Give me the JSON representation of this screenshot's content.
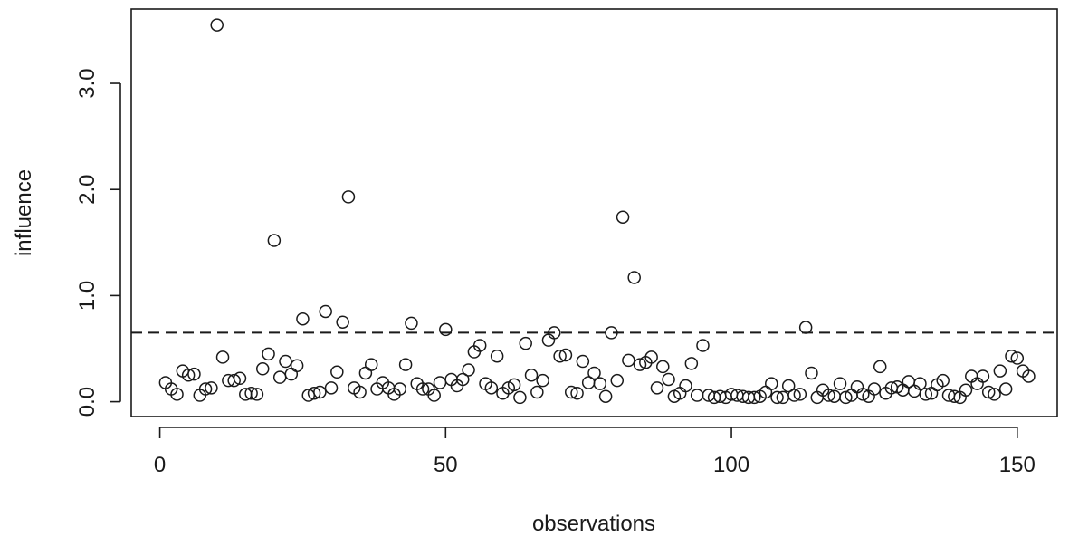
{
  "chart_data": {
    "type": "scatter",
    "xlabel": "observations",
    "ylabel": "influence",
    "xlim": [
      -5,
      157
    ],
    "ylim": [
      -0.14,
      3.7
    ],
    "x_ticks": [
      0,
      50,
      100,
      150
    ],
    "x_tick_labels": [
      "0",
      "50",
      "100",
      "150"
    ],
    "y_ticks": [
      0,
      1,
      2,
      3
    ],
    "y_tick_labels": [
      "0.0",
      "1.0",
      "2.0",
      "3.0"
    ],
    "threshold": 0.65,
    "grid": false,
    "x": [
      1,
      2,
      3,
      4,
      5,
      6,
      7,
      8,
      9,
      10,
      11,
      12,
      13,
      14,
      15,
      16,
      17,
      18,
      19,
      20,
      21,
      22,
      23,
      24,
      25,
      26,
      27,
      28,
      29,
      30,
      31,
      32,
      33,
      34,
      35,
      36,
      37,
      38,
      39,
      40,
      41,
      42,
      43,
      44,
      45,
      46,
      47,
      48,
      49,
      50,
      51,
      52,
      53,
      54,
      55,
      56,
      57,
      58,
      59,
      60,
      61,
      62,
      63,
      64,
      65,
      66,
      67,
      68,
      69,
      70,
      71,
      72,
      73,
      74,
      75,
      76,
      77,
      78,
      79,
      80,
      81,
      82,
      83,
      84,
      85,
      86,
      87,
      88,
      89,
      90,
      91,
      92,
      93,
      94,
      95,
      96,
      97,
      98,
      99,
      100,
      101,
      102,
      103,
      104,
      105,
      106,
      107,
      108,
      109,
      110,
      111,
      112,
      113,
      114,
      115,
      116,
      117,
      118,
      119,
      120,
      121,
      122,
      123,
      124,
      125,
      126,
      127,
      128,
      129,
      130,
      131,
      132,
      133,
      134,
      135,
      136,
      137,
      138,
      139,
      140,
      141,
      142,
      143,
      144,
      145,
      146,
      147,
      148,
      149,
      150,
      151,
      152
    ],
    "y": [
      0.18,
      0.12,
      0.07,
      0.29,
      0.25,
      0.26,
      0.06,
      0.12,
      0.13,
      3.55,
      0.42,
      0.2,
      0.2,
      0.22,
      0.07,
      0.08,
      0.07,
      0.31,
      0.45,
      1.52,
      0.23,
      0.38,
      0.26,
      0.34,
      0.78,
      0.06,
      0.08,
      0.09,
      0.85,
      0.13,
      0.28,
      0.75,
      1.93,
      0.13,
      0.09,
      0.27,
      0.35,
      0.12,
      0.18,
      0.13,
      0.07,
      0.12,
      0.35,
      0.74,
      0.17,
      0.12,
      0.12,
      0.06,
      0.18,
      0.68,
      0.21,
      0.15,
      0.21,
      0.3,
      0.47,
      0.53,
      0.17,
      0.13,
      0.43,
      0.08,
      0.13,
      0.16,
      0.04,
      0.55,
      0.25,
      0.09,
      0.2,
      0.58,
      0.65,
      0.43,
      0.44,
      0.09,
      0.08,
      0.38,
      0.18,
      0.27,
      0.17,
      0.05,
      0.65,
      0.2,
      1.74,
      0.39,
      1.17,
      0.35,
      0.37,
      0.42,
      0.13,
      0.33,
      0.21,
      0.05,
      0.08,
      0.15,
      0.36,
      0.06,
      0.53,
      0.06,
      0.04,
      0.05,
      0.04,
      0.07,
      0.06,
      0.05,
      0.04,
      0.04,
      0.05,
      0.09,
      0.17,
      0.04,
      0.04,
      0.15,
      0.06,
      0.07,
      0.7,
      0.27,
      0.04,
      0.11,
      0.06,
      0.05,
      0.17,
      0.04,
      0.06,
      0.14,
      0.07,
      0.05,
      0.12,
      0.33,
      0.08,
      0.13,
      0.14,
      0.11,
      0.19,
      0.1,
      0.17,
      0.07,
      0.08,
      0.16,
      0.2,
      0.06,
      0.05,
      0.04,
      0.11,
      0.24,
      0.17,
      0.24,
      0.09,
      0.07,
      0.29,
      0.12,
      0.43,
      0.41,
      0.29,
      0.24
    ]
  }
}
